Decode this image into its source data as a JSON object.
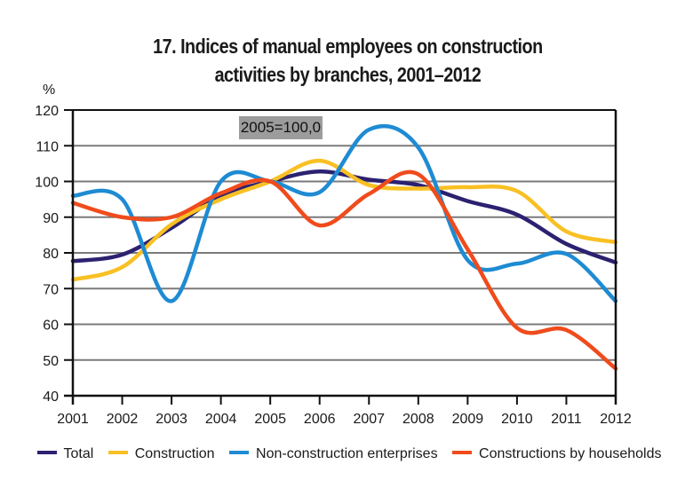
{
  "chart_data": {
    "type": "line",
    "title": "17. Indices of manual employees on construction activities by branches, 2001–2012",
    "title_lines": [
      "17. Indices of manual employees on construction",
      "activities by branches, 2001–2012"
    ],
    "ylabel": "%",
    "xlabel": "",
    "annotation": "2005=100,0",
    "x": [
      "2001",
      "2002",
      "2003",
      "2004",
      "2005",
      "2006",
      "2007",
      "2008",
      "2009",
      "2010",
      "2011",
      "2012"
    ],
    "ylim": [
      40,
      120
    ],
    "yticks": [
      40,
      50,
      60,
      70,
      80,
      90,
      100,
      110,
      120
    ],
    "grid": true,
    "legend_position": "bottom",
    "series": [
      {
        "name": "Total",
        "color": "#2b2170",
        "values": [
          77.7,
          79.5,
          87,
          96,
          100,
          102.8,
          100.5,
          99,
          94.5,
          90.7,
          82.5,
          77.3
        ]
      },
      {
        "name": "Construction",
        "color": "#f9c023",
        "values": [
          72.5,
          76,
          88,
          95,
          100,
          105.8,
          99,
          98,
          98.4,
          97.3,
          86,
          83
        ]
      },
      {
        "name": "Non-construction enterprises",
        "color": "#1e8bd3",
        "values": [
          96,
          95,
          66.5,
          100,
          100,
          97,
          114.5,
          109.5,
          78,
          77,
          79.7,
          66.5
        ]
      },
      {
        "name": "Constructions by households",
        "color": "#f04b1c",
        "values": [
          94,
          90,
          90,
          96.7,
          100,
          87.7,
          96.5,
          102,
          81,
          59,
          58.4,
          47.6
        ]
      }
    ]
  }
}
